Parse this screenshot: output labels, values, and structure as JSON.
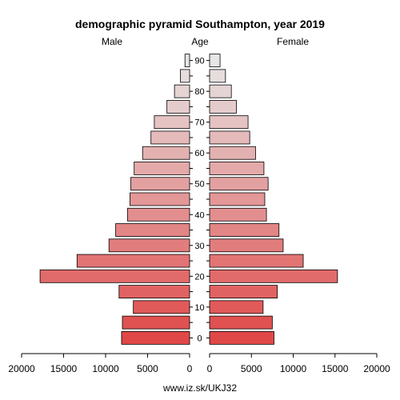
{
  "chart_data": {
    "type": "bar",
    "title": "demographic pyramid Southampton, year 2019",
    "left_label": "Male",
    "center_label": "Age",
    "right_label": "Female",
    "source": "www.iz.sk/UKJ32",
    "age_groups": [
      "0-4",
      "5-9",
      "10-14",
      "15-19",
      "20-24",
      "25-29",
      "30-34",
      "35-39",
      "40-44",
      "45-49",
      "50-54",
      "55-59",
      "60-64",
      "65-69",
      "70-74",
      "75-79",
      "80-84",
      "85-89",
      "90+"
    ],
    "age_tick_labels": [
      "0",
      "10",
      "20",
      "30",
      "40",
      "50",
      "60",
      "70",
      "80",
      "90"
    ],
    "age_tick_values": [
      0,
      10,
      20,
      30,
      40,
      50,
      60,
      70,
      80,
      90
    ],
    "x_tick_labels_left": [
      "20000",
      "15000",
      "10000",
      "5000",
      "0"
    ],
    "x_tick_labels_right": [
      "0",
      "5000",
      "10000",
      "15000",
      "20000"
    ],
    "xlim": [
      0,
      20000
    ],
    "series": [
      {
        "name": "Male",
        "values": [
          8100,
          8000,
          6700,
          8400,
          17800,
          13400,
          9600,
          8800,
          7400,
          7100,
          7000,
          6600,
          5600,
          4600,
          4200,
          2700,
          1800,
          1100,
          550
        ]
      },
      {
        "name": "Female",
        "values": [
          7700,
          7500,
          6400,
          8100,
          15300,
          11200,
          8800,
          8300,
          6800,
          6600,
          7000,
          6500,
          5500,
          4800,
          4600,
          3200,
          2600,
          1900,
          1250
        ]
      }
    ],
    "colors": {
      "bottom": "#e04848",
      "top": "#e6e6e6",
      "outline": "#000000"
    }
  }
}
